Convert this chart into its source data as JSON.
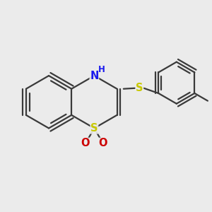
{
  "background_color": "#ebebeb",
  "bond_color": "#3a3a3a",
  "n_color": "#1a1aee",
  "s_color": "#c8c800",
  "o_color": "#cc0000",
  "line_width": 1.6,
  "figsize": [
    3.0,
    3.0
  ],
  "dpi": 100,
  "xlim": [
    -2.8,
    3.5
  ],
  "ylim": [
    -2.5,
    2.5
  ]
}
